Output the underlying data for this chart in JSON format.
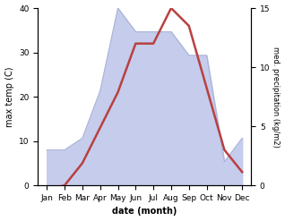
{
  "months": [
    "Jan",
    "Feb",
    "Mar",
    "Apr",
    "May",
    "Jun",
    "Jul",
    "Aug",
    "Sep",
    "Oct",
    "Nov",
    "Dec"
  ],
  "temp": [
    -1,
    0,
    5,
    13,
    21,
    32,
    32,
    40,
    36,
    22,
    8,
    3
  ],
  "precip": [
    3,
    3,
    4,
    8,
    15,
    13,
    13,
    13,
    11,
    11,
    2,
    4
  ],
  "temp_color": "#b94040",
  "precip_fill_color": "#c5ccec",
  "precip_line_color": "#aab4d8",
  "temp_ylim": [
    0,
    40
  ],
  "precip_ylim": [
    0,
    15
  ],
  "temp_yticks": [
    0,
    10,
    20,
    30,
    40
  ],
  "precip_yticks": [
    0,
    5,
    10,
    15
  ],
  "xlabel": "date (month)",
  "ylabel_left": "max temp (C)",
  "ylabel_right": "med. precipitation (kg/m2)"
}
